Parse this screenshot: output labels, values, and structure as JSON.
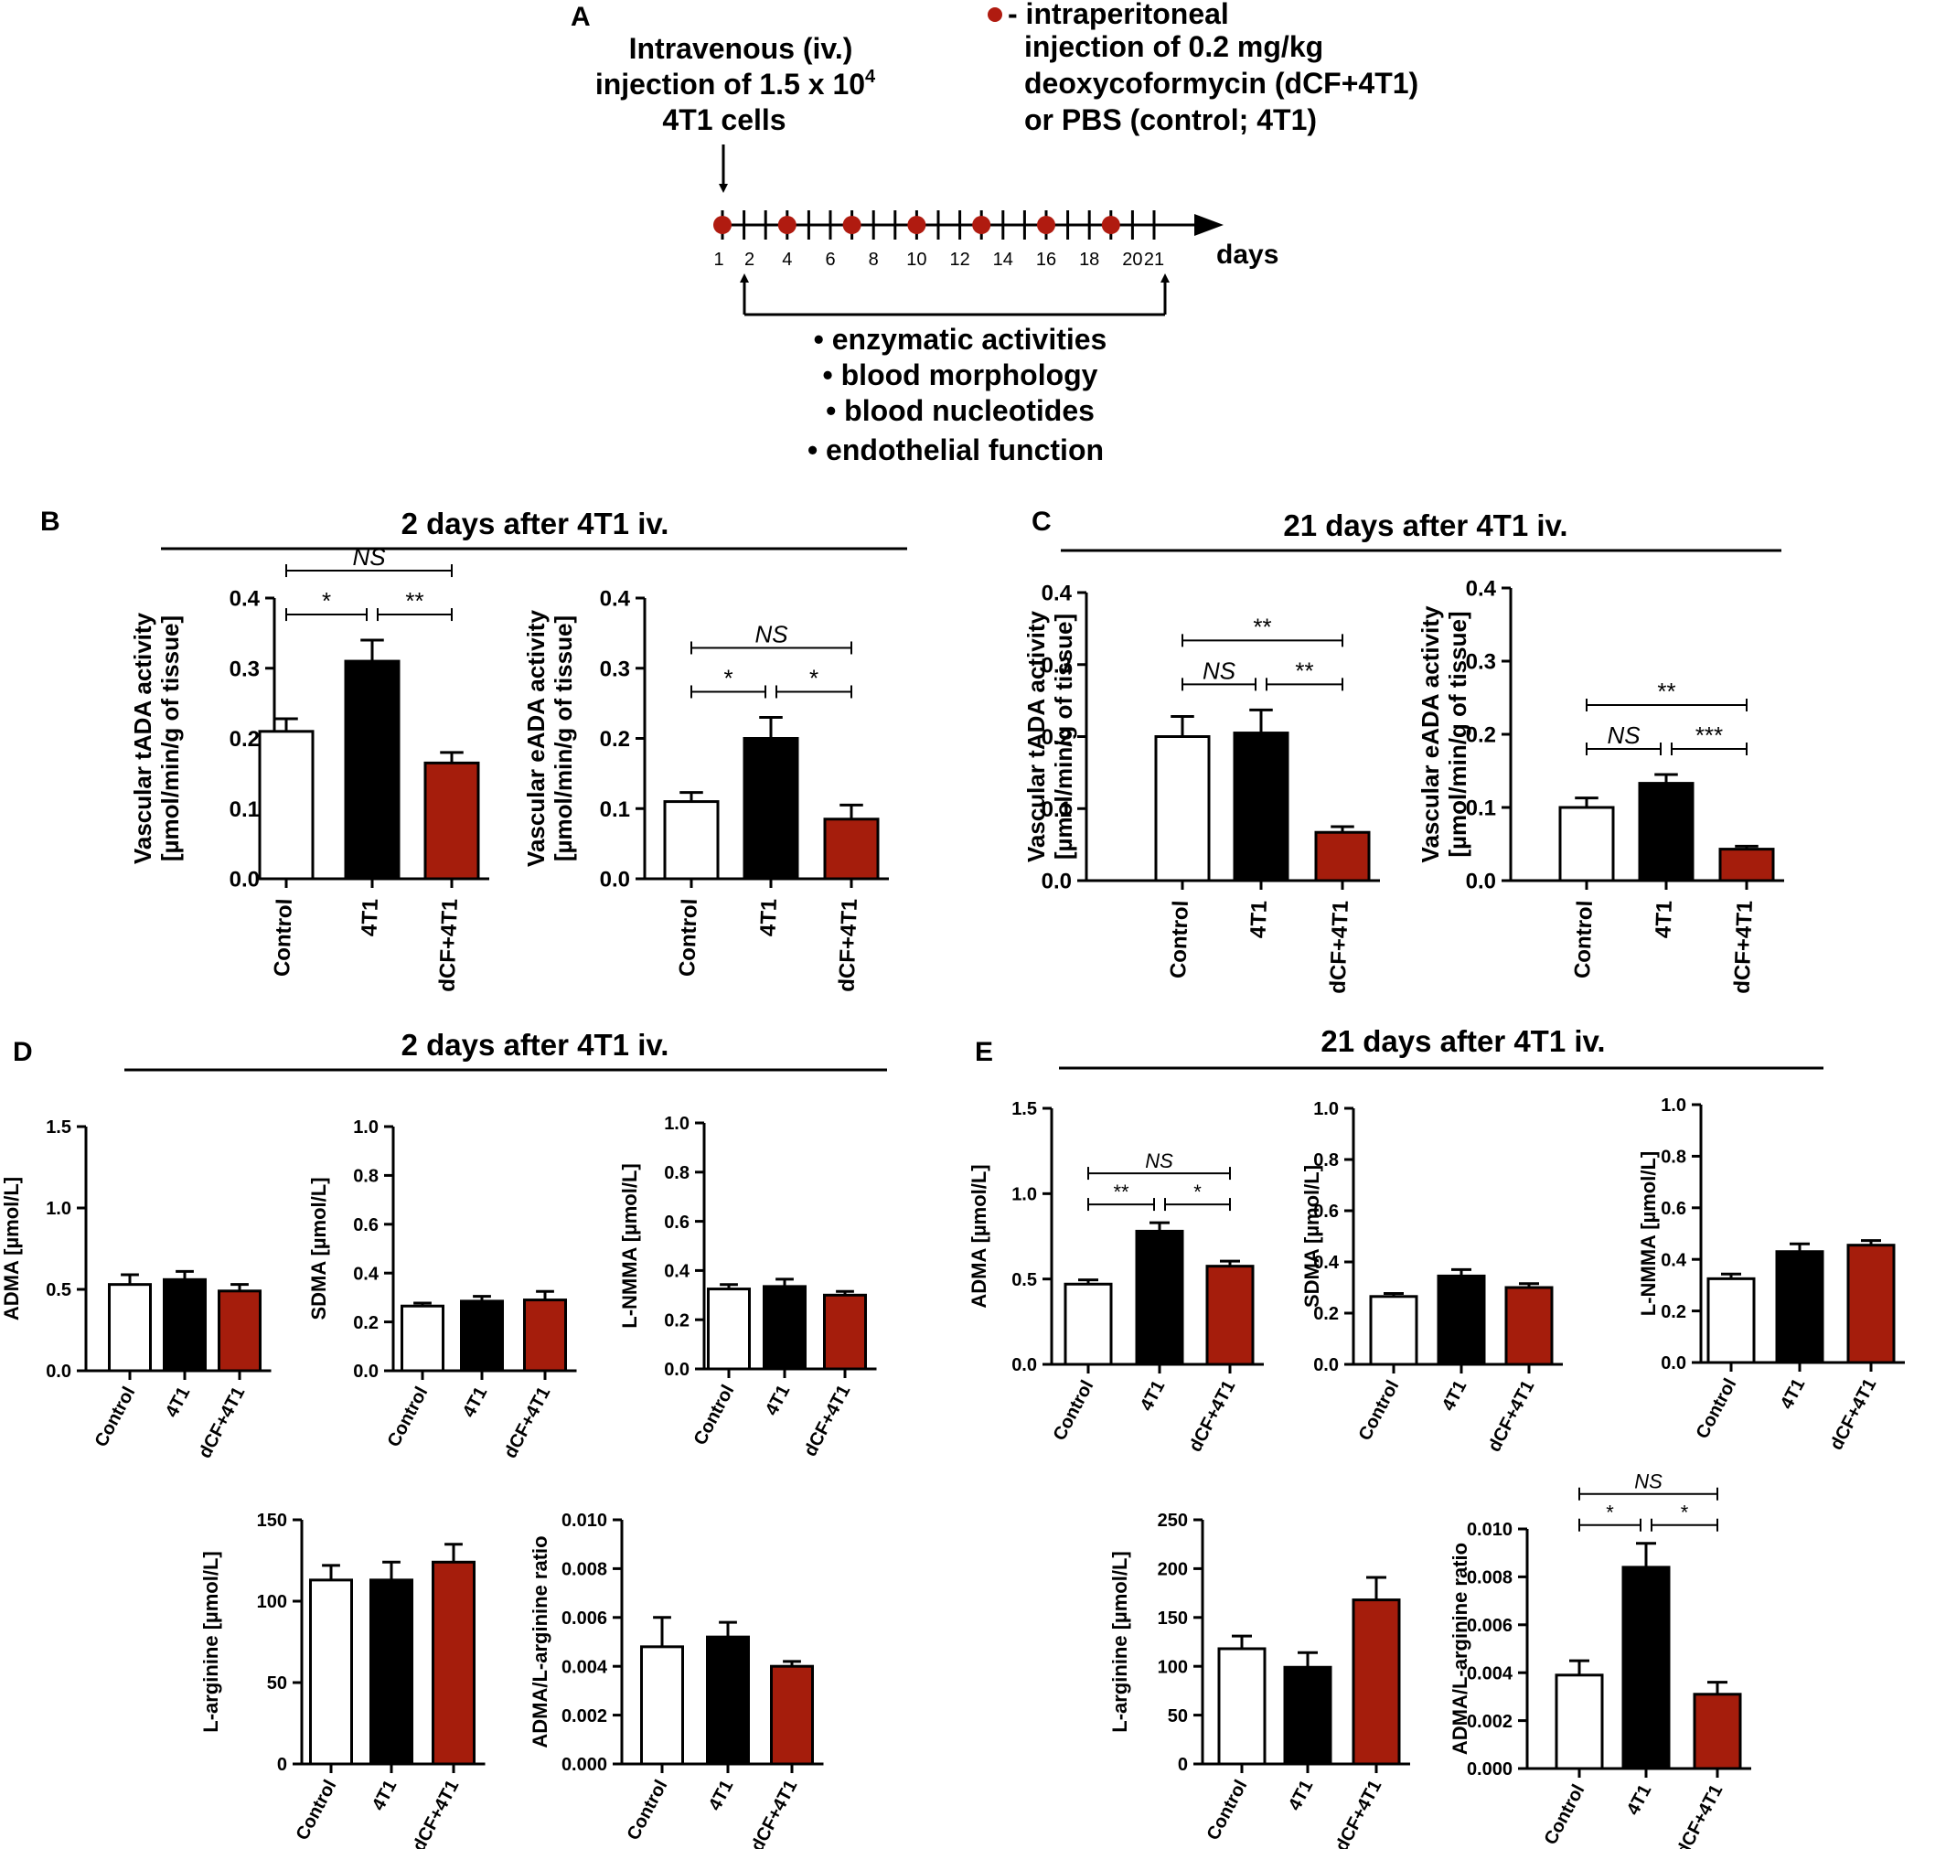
{
  "colors": {
    "control": "#ffffff",
    "tumor": "#000000",
    "treated": "#a51d0c",
    "timeline_dot": "#b01b10"
  },
  "panel_a": {
    "letter": "A",
    "iv_text": [
      "Intravenous (iv.)",
      "injection of 1.5 x 10",
      "4T1 cells"
    ],
    "iv_superscript": "4",
    "ip_text": [
      "- intraperitoneal",
      "injection of 0.2 mg/kg",
      "deoxycoformycin (dCF+4T1)",
      "or PBS (control; 4T1)"
    ],
    "day_ticks": [
      "1",
      "2",
      "4",
      "6",
      "8",
      "10",
      "12",
      "14",
      "16",
      "18",
      "20",
      "21"
    ],
    "injection_days": [
      1,
      4,
      7,
      10,
      13,
      16,
      19
    ],
    "days_label": "days",
    "measurements": [
      "enzymatic activities",
      "blood morphology",
      "blood nucleotides",
      "endothelial function"
    ]
  },
  "section_titles": {
    "B": {
      "letter": "B",
      "title": "2 days after 4T1 iv."
    },
    "C": {
      "letter": "C",
      "title": "21 days after 4T1 iv."
    },
    "D": {
      "letter": "D",
      "title": "2 days after 4T1 iv."
    },
    "E": {
      "letter": "E",
      "title": "21 days after 4T1 iv."
    }
  },
  "chart_data": [
    {
      "id": "B1",
      "type": "bar",
      "categories": [
        "Control",
        "4T1",
        "dCF+4T1"
      ],
      "values": [
        0.21,
        0.31,
        0.165
      ],
      "errors": [
        0.018,
        0.03,
        0.015
      ],
      "ylabel": [
        "Vascular tADA activity",
        "[µmol/min/g of tissue]"
      ],
      "ylim": [
        0,
        0.4
      ],
      "yticks": [
        "0.0",
        "0.1",
        "0.2",
        "0.3",
        "0.4"
      ],
      "significance": [
        {
          "from": 0,
          "to": 2,
          "label": "NS",
          "italic": true,
          "level": 1
        },
        {
          "from": 0,
          "to": 1,
          "label": "*",
          "level": 0
        },
        {
          "from": 1,
          "to": 2,
          "label": "**",
          "level": 0
        }
      ]
    },
    {
      "id": "B2",
      "type": "bar",
      "categories": [
        "Control",
        "4T1",
        "dCF+4T1"
      ],
      "values": [
        0.11,
        0.2,
        0.085
      ],
      "errors": [
        0.013,
        0.03,
        0.02
      ],
      "ylabel": [
        "Vascular eADA activity",
        "[µmol/min/g of tissue]"
      ],
      "ylim": [
        0,
        0.4
      ],
      "yticks": [
        "0.0",
        "0.1",
        "0.2",
        "0.3",
        "0.4"
      ],
      "significance": [
        {
          "from": 0,
          "to": 2,
          "label": "NS",
          "italic": true,
          "level": 1
        },
        {
          "from": 0,
          "to": 1,
          "label": "*",
          "level": 0
        },
        {
          "from": 1,
          "to": 2,
          "label": "*",
          "level": 0
        }
      ]
    },
    {
      "id": "C1",
      "type": "bar",
      "categories": [
        "Control",
        "4T1",
        "dCF+4T1"
      ],
      "values": [
        0.2,
        0.205,
        0.067
      ],
      "errors": [
        0.028,
        0.032,
        0.008
      ],
      "ylabel": [
        "Vascular tADA activity",
        "[µmol/min/g of tissue]"
      ],
      "ylim": [
        0,
        0.4
      ],
      "yticks": [
        "0.0",
        "0.1",
        "0.2",
        "0.3",
        "0.4"
      ],
      "significance": [
        {
          "from": 0,
          "to": 2,
          "label": "**",
          "level": 1
        },
        {
          "from": 0,
          "to": 1,
          "label": "NS",
          "italic": true,
          "level": 0
        },
        {
          "from": 1,
          "to": 2,
          "label": "**",
          "level": 0
        }
      ]
    },
    {
      "id": "C2",
      "type": "bar",
      "categories": [
        "Control",
        "4T1",
        "dCF+4T1"
      ],
      "values": [
        0.1,
        0.133,
        0.043
      ],
      "errors": [
        0.013,
        0.012,
        0.004
      ],
      "ylabel": [
        "Vascular eADA activity",
        "[µmol/min/g of tissue]"
      ],
      "ylim": [
        0,
        0.4
      ],
      "yticks": [
        "0.0",
        "0.1",
        "0.2",
        "0.3",
        "0.4"
      ],
      "significance": [
        {
          "from": 0,
          "to": 2,
          "label": "**",
          "level": 1
        },
        {
          "from": 0,
          "to": 1,
          "label": "NS",
          "italic": true,
          "level": 0
        },
        {
          "from": 1,
          "to": 2,
          "label": "***",
          "level": 0
        }
      ]
    },
    {
      "id": "D1",
      "type": "bar",
      "categories": [
        "Control",
        "4T1",
        "dCF+4T1"
      ],
      "values": [
        0.53,
        0.56,
        0.49
      ],
      "errors": [
        0.06,
        0.05,
        0.04
      ],
      "ylabel": [
        "ADMA [µmol/L]"
      ],
      "ylim": [
        0,
        1.5
      ],
      "yticks": [
        "0.0",
        "0.5",
        "1.0",
        "1.5"
      ],
      "significance": []
    },
    {
      "id": "D2",
      "type": "bar",
      "categories": [
        "Control",
        "4T1",
        "dCF+4T1"
      ],
      "values": [
        0.265,
        0.285,
        0.29
      ],
      "errors": [
        0.012,
        0.02,
        0.035
      ],
      "ylabel": [
        "SDMA [µmol/L]"
      ],
      "ylim": [
        0,
        1.0
      ],
      "yticks": [
        "0.0",
        "0.2",
        "0.4",
        "0.6",
        "0.8",
        "1.0"
      ],
      "significance": []
    },
    {
      "id": "D3",
      "type": "bar",
      "categories": [
        "Control",
        "4T1",
        "dCF+4T1"
      ],
      "values": [
        0.325,
        0.335,
        0.3
      ],
      "errors": [
        0.018,
        0.03,
        0.015
      ],
      "ylabel": [
        "L-NMMA [µmol/L]"
      ],
      "ylim": [
        0,
        1.0
      ],
      "yticks": [
        "0.0",
        "0.2",
        "0.4",
        "0.6",
        "0.8",
        "1.0"
      ],
      "significance": []
    },
    {
      "id": "D4",
      "type": "bar",
      "categories": [
        "Control",
        "4T1",
        "dCF+4T1"
      ],
      "values": [
        113,
        113,
        124
      ],
      "errors": [
        9,
        11,
        11
      ],
      "ylabel": [
        "L-arginine [µmol/L]"
      ],
      "ylim": [
        0,
        150
      ],
      "yticks": [
        "0",
        "50",
        "100",
        "150"
      ],
      "significance": []
    },
    {
      "id": "D5",
      "type": "bar",
      "categories": [
        "Control",
        "4T1",
        "dCF+4T1"
      ],
      "values": [
        0.0048,
        0.0052,
        0.004
      ],
      "errors": [
        0.0012,
        0.0006,
        0.0002
      ],
      "ylabel": [
        "ADMA/L-arginine ratio"
      ],
      "ylim": [
        0,
        0.01
      ],
      "yticks": [
        "0.000",
        "0.002",
        "0.004",
        "0.006",
        "0.008",
        "0.010"
      ],
      "significance": []
    },
    {
      "id": "E1",
      "type": "bar",
      "categories": [
        "Control",
        "4T1",
        "dCF+4T1"
      ],
      "values": [
        0.47,
        0.78,
        0.575
      ],
      "errors": [
        0.025,
        0.05,
        0.03
      ],
      "ylabel": [
        "ADMA [µmol/L]"
      ],
      "ylim": [
        0,
        1.5
      ],
      "yticks": [
        "0.0",
        "0.5",
        "1.0",
        "1.5"
      ],
      "significance": [
        {
          "from": 0,
          "to": 2,
          "label": "NS",
          "italic": true,
          "level": 1
        },
        {
          "from": 0,
          "to": 1,
          "label": "**",
          "level": 0
        },
        {
          "from": 1,
          "to": 2,
          "label": "*",
          "level": 0
        }
      ]
    },
    {
      "id": "E2",
      "type": "bar",
      "categories": [
        "Control",
        "4T1",
        "dCF+4T1"
      ],
      "values": [
        0.265,
        0.345,
        0.3
      ],
      "errors": [
        0.012,
        0.025,
        0.015
      ],
      "ylabel": [
        "SDMA [µmol/L]"
      ],
      "ylim": [
        0,
        1.0
      ],
      "yticks": [
        "0.0",
        "0.2",
        "0.4",
        "0.6",
        "0.8",
        "1.0"
      ],
      "significance": []
    },
    {
      "id": "E3",
      "type": "bar",
      "categories": [
        "Control",
        "4T1",
        "dCF+4T1"
      ],
      "values": [
        0.325,
        0.43,
        0.455
      ],
      "errors": [
        0.018,
        0.03,
        0.018
      ],
      "ylabel": [
        "L-NMMA [µmol/L]"
      ],
      "ylim": [
        0,
        1.0
      ],
      "yticks": [
        "0.0",
        "0.2",
        "0.4",
        "0.6",
        "0.8",
        "1.0"
      ],
      "significance": []
    },
    {
      "id": "E4",
      "type": "bar",
      "categories": [
        "Control",
        "4T1",
        "dCF+4T1"
      ],
      "values": [
        118,
        99,
        168
      ],
      "errors": [
        13,
        15,
        23
      ],
      "ylabel": [
        "L-arginine [µmol/L]"
      ],
      "ylim": [
        0,
        250
      ],
      "yticks": [
        "0",
        "50",
        "100",
        "150",
        "200",
        "250"
      ],
      "significance": []
    },
    {
      "id": "E5",
      "type": "bar",
      "categories": [
        "Control",
        "4T1",
        "dCF+4T1"
      ],
      "values": [
        0.0039,
        0.0084,
        0.0031
      ],
      "errors": [
        0.0006,
        0.001,
        0.0005
      ],
      "ylabel": [
        "ADMA/L-arginine ratio"
      ],
      "ylim": [
        0,
        0.01
      ],
      "yticks": [
        "0.000",
        "0.002",
        "0.004",
        "0.006",
        "0.008",
        "0.010"
      ],
      "significance": [
        {
          "from": 0,
          "to": 2,
          "label": "NS",
          "italic": true,
          "level": 1
        },
        {
          "from": 0,
          "to": 1,
          "label": "*",
          "level": 0
        },
        {
          "from": 1,
          "to": 2,
          "label": "*",
          "level": 0
        }
      ]
    }
  ]
}
